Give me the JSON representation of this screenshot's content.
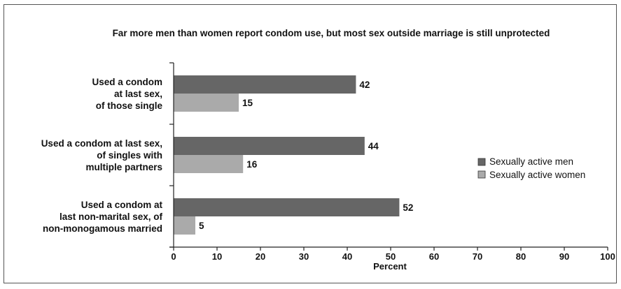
{
  "chart_data": {
    "type": "bar",
    "orientation": "horizontal",
    "title": "Far more men than women report condom use, but most sex outside marriage is still unprotected",
    "categories": [
      [
        "Used a condom",
        "at last sex,",
        "of those single"
      ],
      [
        "Used a condom at last sex,",
        "of singles with",
        "multiple partners"
      ],
      [
        "Used a condom at",
        "last non-marital sex, of",
        "non-monogamous married"
      ]
    ],
    "series": [
      {
        "name": "Sexually active men",
        "values": [
          42,
          44,
          52
        ],
        "color": "#666666"
      },
      {
        "name": "Sexually active women",
        "values": [
          15,
          16,
          5
        ],
        "color": "#aaaaaa"
      }
    ],
    "xlabel": "Percent",
    "xlim": [
      0,
      100
    ],
    "xticks": [
      0,
      10,
      20,
      30,
      40,
      50,
      60,
      70,
      80,
      90,
      100
    ],
    "grid": false,
    "legend_position": "right"
  }
}
